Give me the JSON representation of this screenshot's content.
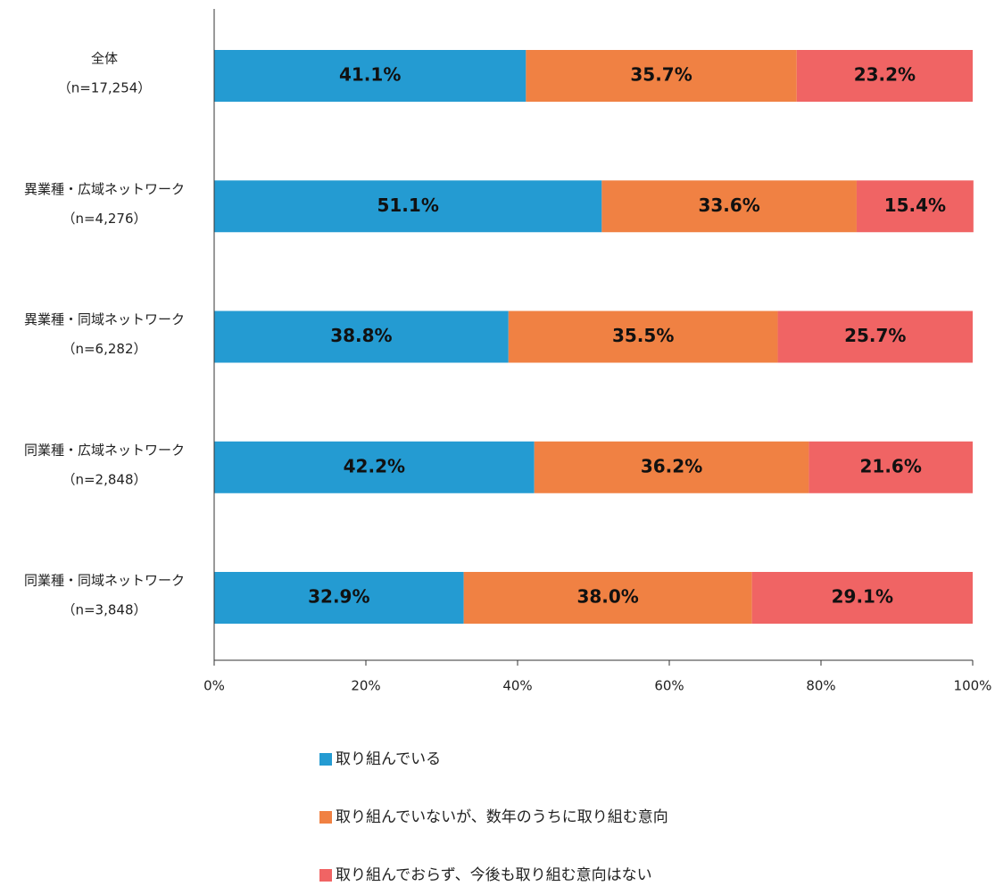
{
  "chart_data": {
    "type": "stacked-bar-horizontal",
    "categories": [
      [
        "全体",
        "（n=17,254）"
      ],
      [
        "異業種・広域ネットワーク",
        "（n=4,276）"
      ],
      [
        "異業種・同域ネットワーク",
        "（n=6,282）"
      ],
      [
        "同業種・広域ネットワーク",
        "（n=2,848）"
      ],
      [
        "同業種・同域ネットワーク",
        "（n=3,848）"
      ]
    ],
    "series": [
      {
        "name": "取り組んでいる",
        "color": "#249bd2",
        "values": [
          41.1,
          51.1,
          38.8,
          42.2,
          32.9
        ],
        "value_labels": [
          "41.1%",
          "51.1%",
          "38.8%",
          "42.2%",
          "32.9%"
        ]
      },
      {
        "name": "取り組んでいないが、数年のうちに取り組む意向",
        "color": "#f08143",
        "values": [
          35.7,
          33.6,
          35.5,
          36.2,
          38.0
        ],
        "value_labels": [
          "35.7%",
          "33.6%",
          "35.5%",
          "36.2%",
          "38.0%"
        ]
      },
      {
        "name": "取り組んでおらず、今後も取り組む意向はない",
        "color": "#f06464",
        "values": [
          23.2,
          15.4,
          25.7,
          21.6,
          29.1
        ],
        "value_labels": [
          "23.2%",
          "15.4%",
          "25.7%",
          "21.6%",
          "29.1%"
        ]
      }
    ],
    "xlim": [
      0,
      100
    ],
    "xticks": [
      {
        "value": 0,
        "label": "0%"
      },
      {
        "value": 20,
        "label": "20%"
      },
      {
        "value": 40,
        "label": "40%"
      },
      {
        "value": 60,
        "label": "60%"
      },
      {
        "value": 80,
        "label": "80%"
      },
      {
        "value": 100,
        "label": "100%"
      }
    ],
    "legend": "bottom"
  }
}
